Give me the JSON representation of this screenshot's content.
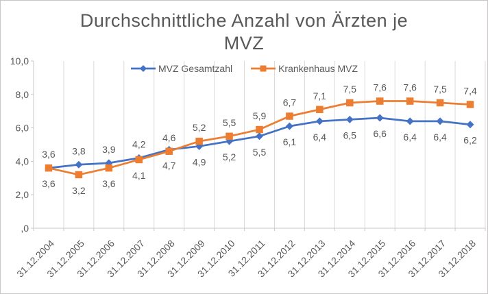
{
  "title_lines": [
    "Durchschnittliche Anzahl von Ärzten je",
    "MVZ"
  ],
  "chart_data": {
    "type": "line",
    "title": "Durchschnittliche Anzahl von Ärzten je MVZ",
    "categories": [
      "31.12.2004",
      "31.12.2005",
      "31.12.2006",
      "31.12.2007",
      "31.12.2008",
      "31.12.2009",
      "31.12.2010",
      "31.12.2011",
      "31.12.2012",
      "31.12.2013",
      "31.12.2014",
      "31.12.2015",
      "31.12.2016",
      "31.12.2017",
      "31.12.2018"
    ],
    "series": [
      {
        "name": "MVZ Gesamtzahl",
        "color": "#4472C4",
        "marker": "diamond",
        "values": [
          3.6,
          3.8,
          3.9,
          4.2,
          4.7,
          4.9,
          5.2,
          5.5,
          6.1,
          6.4,
          6.5,
          6.6,
          6.4,
          6.4,
          6.2
        ],
        "labels": [
          "3,6",
          "3,8",
          "3,9",
          "4,2",
          "4,7",
          "4,9",
          "5,2",
          "5,5",
          "6,1",
          "6,4",
          "6,5",
          "6,6",
          "6,4",
          "6,4",
          "6,2"
        ],
        "label_positions": [
          "above",
          "above",
          "above",
          "above",
          "below",
          "below",
          "below",
          "below",
          "below",
          "below",
          "below",
          "below",
          "below",
          "below",
          "below"
        ]
      },
      {
        "name": "Krankenhaus MVZ",
        "color": "#ED7D31",
        "marker": "square",
        "values": [
          3.6,
          3.2,
          3.6,
          4.1,
          4.6,
          5.2,
          5.5,
          5.9,
          6.7,
          7.1,
          7.5,
          7.6,
          7.6,
          7.5,
          7.4
        ],
        "labels": [
          "3,6",
          "3,2",
          "3,6",
          "4,1",
          "4,6",
          "5,2",
          "5,5",
          "5,9",
          "6,7",
          "7,1",
          "7,5",
          "7,6",
          "7,6",
          "7,5",
          "7,4"
        ],
        "label_positions": [
          "below",
          "below",
          "below",
          "below",
          "above",
          "above",
          "above",
          "above",
          "above",
          "above",
          "above",
          "above",
          "above",
          "above",
          "above"
        ]
      }
    ],
    "y_axis": {
      "min": 0,
      "max": 10,
      "tick_step": 2,
      "tick_labels": [
        ",0",
        "2,0",
        "4,0",
        "6,0",
        "8,0",
        "10,0"
      ]
    },
    "x_axis": {
      "label_rotation_deg": -45
    },
    "grid": "vertical-only",
    "legend_position": "top-inside"
  },
  "style": {
    "series_blue": "#4472C4",
    "series_orange": "#ED7D31",
    "grid_color": "#D9D9D9",
    "axis_color": "#C8C8C8",
    "text_color": "#595959",
    "title_color": "#595959",
    "border_color": "#C9C7C5",
    "background": "#FFFFFF"
  }
}
